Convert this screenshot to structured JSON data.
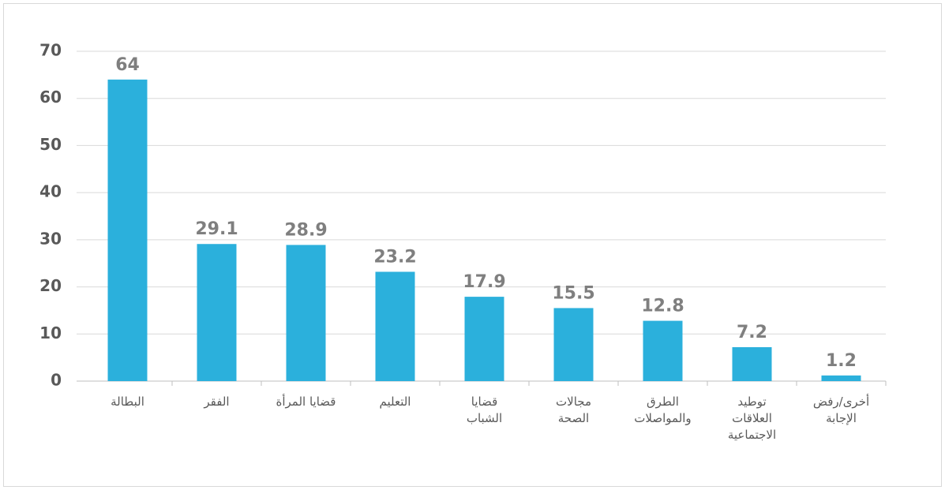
{
  "chart_data": {
    "type": "bar",
    "categories": [
      [
        "البطالة"
      ],
      [
        "الفقر"
      ],
      [
        "قضايا المرأة"
      ],
      [
        "التعليم"
      ],
      [
        "قضايا",
        "الشباب"
      ],
      [
        "مجالات",
        "الصحة"
      ],
      [
        "الطرق",
        "والمواصلات"
      ],
      [
        "توطيد",
        "العلاقات",
        "الاجتماعية"
      ],
      [
        "أخرى/رفض",
        "الإجابة"
      ]
    ],
    "values": [
      64,
      29.1,
      28.9,
      23.2,
      17.9,
      15.5,
      12.8,
      7.2,
      1.2
    ],
    "color": "#2bb0dc",
    "ylim": [
      0,
      70
    ],
    "yticks": [
      0,
      10,
      20,
      30,
      40,
      50,
      60,
      70
    ],
    "grid": true
  }
}
